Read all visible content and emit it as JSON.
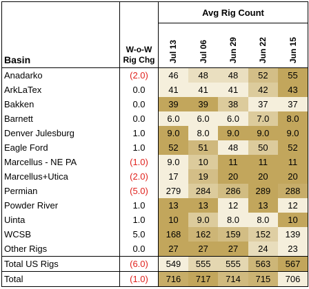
{
  "chart_data": {
    "type": "table",
    "title": "Avg Rig Count",
    "row_header": "Basin",
    "change_header_line1": "W-o-W",
    "change_header_line2": "Rig Chg",
    "weeks": [
      "Jul 13",
      "Jul 06",
      "Jun 29",
      "Jun 22",
      "Jun 15"
    ],
    "rows": [
      {
        "basin": "Anadarko",
        "chg": "(2.0)",
        "neg": true,
        "values": [
          "46",
          "48",
          "48",
          "52",
          "55"
        ]
      },
      {
        "basin": "ArkLaTex",
        "chg": "0.0",
        "neg": false,
        "values": [
          "41",
          "41",
          "41",
          "42",
          "43"
        ]
      },
      {
        "basin": "Bakken",
        "chg": "0.0",
        "neg": false,
        "values": [
          "39",
          "39",
          "38",
          "37",
          "37"
        ]
      },
      {
        "basin": "Barnett",
        "chg": "0.0",
        "neg": false,
        "values": [
          "6.0",
          "6.0",
          "6.0",
          "7.0",
          "8.0"
        ]
      },
      {
        "basin": "Denver Julesburg",
        "chg": "1.0",
        "neg": false,
        "values": [
          "9.0",
          "8.0",
          "9.0",
          "9.0",
          "9.0"
        ]
      },
      {
        "basin": "Eagle Ford",
        "chg": "1.0",
        "neg": false,
        "values": [
          "52",
          "51",
          "48",
          "50",
          "52"
        ]
      },
      {
        "basin": "Marcellus - NE PA",
        "chg": "(1.0)",
        "neg": true,
        "values": [
          "9.0",
          "10",
          "11",
          "11",
          "11"
        ]
      },
      {
        "basin": "Marcellus+Utica",
        "chg": "(2.0)",
        "neg": true,
        "values": [
          "17",
          "19",
          "20",
          "20",
          "20"
        ]
      },
      {
        "basin": "Permian",
        "chg": "(5.0)",
        "neg": true,
        "values": [
          "279",
          "284",
          "286",
          "289",
          "288"
        ]
      },
      {
        "basin": "Powder River",
        "chg": "1.0",
        "neg": false,
        "values": [
          "13",
          "13",
          "12",
          "13",
          "12"
        ]
      },
      {
        "basin": "Uinta",
        "chg": "1.0",
        "neg": false,
        "values": [
          "10",
          "9.0",
          "8.0",
          "8.0",
          "10"
        ]
      },
      {
        "basin": "WCSB",
        "chg": "5.0",
        "neg": false,
        "values": [
          "168",
          "162",
          "159",
          "152",
          "139"
        ]
      },
      {
        "basin": "Other Rigs",
        "chg": "0.0",
        "neg": false,
        "values": [
          "27",
          "27",
          "27",
          "24",
          "23"
        ]
      },
      {
        "basin": "Total US Rigs",
        "chg": "(6.0)",
        "neg": true,
        "values": [
          "549",
          "555",
          "555",
          "563",
          "567"
        ]
      },
      {
        "basin": "Total",
        "chg": "(1.0)",
        "neg": true,
        "values": [
          "716",
          "717",
          "714",
          "715",
          "706"
        ]
      }
    ],
    "heat_colors": {
      "low": "#f5efdc",
      "high": "#c2a65c"
    }
  }
}
